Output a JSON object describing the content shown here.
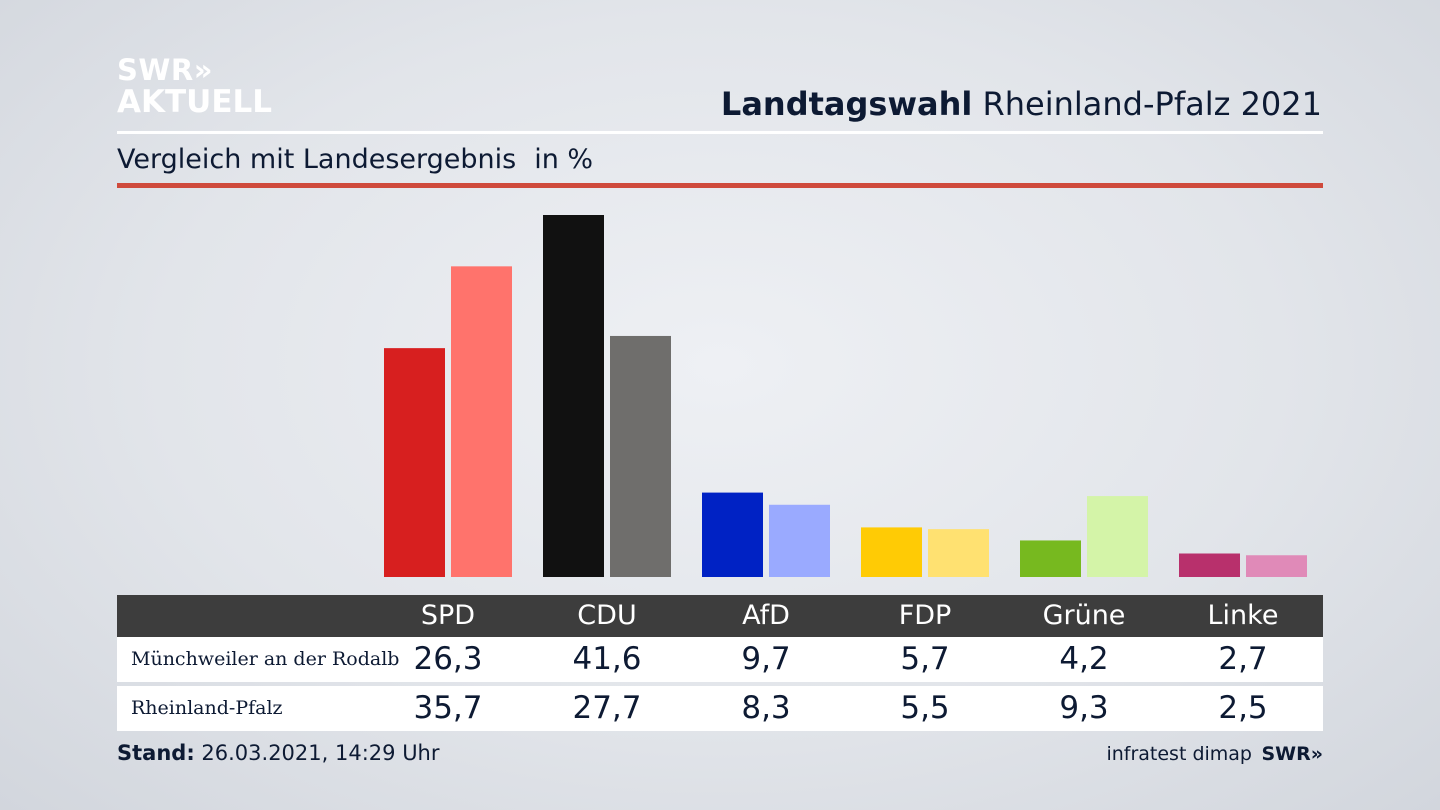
{
  "logo": {
    "line1": "SWR»",
    "line2": "AKTUELL"
  },
  "header": {
    "title_bold": "Landtagswahl",
    "title_rest": "Rheinland-Pfalz 2021",
    "subtitle": "Vergleich mit Landesergebnis",
    "unit": "in %"
  },
  "chart_data": {
    "type": "bar",
    "categories": [
      "SPD",
      "CDU",
      "AfD",
      "FDP",
      "Grüne",
      "Linke"
    ],
    "series": [
      {
        "name": "Münchweiler an der Rodalb",
        "values": [
          26.3,
          41.6,
          9.7,
          5.7,
          4.2,
          2.7
        ],
        "colors": [
          "#d71f1f",
          "#111111",
          "#0022c4",
          "#ffcb05",
          "#77b91f",
          "#b8306c"
        ]
      },
      {
        "name": "Rheinland-Pfalz",
        "values": [
          35.7,
          27.7,
          8.3,
          5.5,
          9.3,
          2.5
        ],
        "colors": [
          "#ff736c",
          "#6f6e6c",
          "#9aaaff",
          "#ffe171",
          "#d4f4a8",
          "#e08ab8"
        ]
      }
    ],
    "title": "Vergleich mit Landesergebnis",
    "ylabel": "in %",
    "ylim": [
      0,
      41.6
    ],
    "grid": false
  },
  "table": {
    "headers": [
      "SPD",
      "CDU",
      "AfD",
      "FDP",
      "Grüne",
      "Linke"
    ],
    "rows": [
      {
        "label": "Münchweiler an der Rodalb",
        "values": [
          "26,3",
          "41,6",
          "9,7",
          "5,7",
          "4,2",
          "2,7"
        ]
      },
      {
        "label": "Rheinland-Pfalz",
        "values": [
          "35,7",
          "27,7",
          "8,3",
          "5,5",
          "9,3",
          "2,5"
        ]
      }
    ]
  },
  "footer": {
    "stand_label": "Stand:",
    "stand_value": "26.03.2021, 14:29 Uhr",
    "source": "infratest dimap",
    "brand": "SWR»"
  }
}
